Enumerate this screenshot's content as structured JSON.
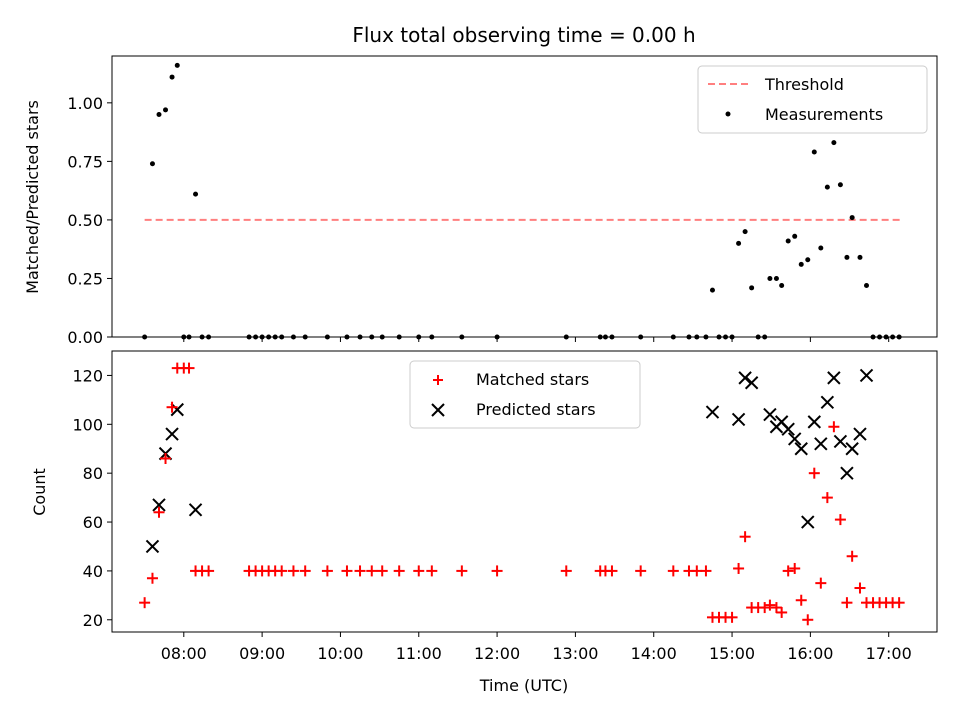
{
  "chart_data": [
    {
      "type": "scatter",
      "title": "Flux total observing time = 0.00 h",
      "xlabel": "",
      "ylabel": "Matched/Predicted stars",
      "ylim": [
        0,
        1.2
      ],
      "yticks": [
        "0.00",
        "0.25",
        "0.50",
        "0.75",
        "1.00"
      ],
      "legend_position": "top-right",
      "threshold": {
        "name": "Threshold",
        "value": 0.5,
        "x_start": "07:30",
        "x_end": "17:10",
        "color": "#ff7f7f"
      },
      "series": [
        {
          "name": "Measurements",
          "color": "#000000",
          "points": [
            [
              "07:30",
              0.0
            ],
            [
              "07:36",
              0.74
            ],
            [
              "07:41",
              0.95
            ],
            [
              "07:46",
              0.97
            ],
            [
              "07:51",
              1.11
            ],
            [
              "07:55",
              1.16
            ],
            [
              "08:00",
              0.0
            ],
            [
              "08:04",
              0.0
            ],
            [
              "08:09",
              0.61
            ],
            [
              "08:14",
              0.0
            ],
            [
              "08:19",
              0.0
            ],
            [
              "08:50",
              0.0
            ],
            [
              "08:55",
              0.0
            ],
            [
              "09:00",
              0.0
            ],
            [
              "09:05",
              0.0
            ],
            [
              "09:10",
              0.0
            ],
            [
              "09:15",
              0.0
            ],
            [
              "09:24",
              0.0
            ],
            [
              "09:33",
              0.0
            ],
            [
              "09:50",
              0.0
            ],
            [
              "10:05",
              0.0
            ],
            [
              "10:15",
              0.0
            ],
            [
              "10:24",
              0.0
            ],
            [
              "10:32",
              0.0
            ],
            [
              "10:45",
              0.0
            ],
            [
              "11:00",
              0.0
            ],
            [
              "11:10",
              0.0
            ],
            [
              "11:33",
              0.0
            ],
            [
              "12:00",
              0.0
            ],
            [
              "12:53",
              0.0
            ],
            [
              "13:19",
              0.0
            ],
            [
              "13:23",
              0.0
            ],
            [
              "13:28",
              0.0
            ],
            [
              "13:50",
              0.0
            ],
            [
              "14:15",
              0.0
            ],
            [
              "14:27",
              0.0
            ],
            [
              "14:33",
              0.0
            ],
            [
              "14:40",
              0.0
            ],
            [
              "14:45",
              0.2
            ],
            [
              "14:50",
              0.0
            ],
            [
              "14:55",
              0.0
            ],
            [
              "15:00",
              0.0
            ],
            [
              "15:05",
              0.4
            ],
            [
              "15:10",
              0.45
            ],
            [
              "15:15",
              0.21
            ],
            [
              "15:20",
              0.0
            ],
            [
              "15:25",
              0.0
            ],
            [
              "15:29",
              0.25
            ],
            [
              "15:34",
              0.25
            ],
            [
              "15:38",
              0.22
            ],
            [
              "15:43",
              0.41
            ],
            [
              "15:48",
              0.43
            ],
            [
              "15:53",
              0.31
            ],
            [
              "15:58",
              0.33
            ],
            [
              "16:03",
              0.79
            ],
            [
              "16:08",
              0.38
            ],
            [
              "16:13",
              0.64
            ],
            [
              "16:18",
              0.83
            ],
            [
              "16:23",
              0.65
            ],
            [
              "16:28",
              0.34
            ],
            [
              "16:32",
              0.51
            ],
            [
              "16:38",
              0.34
            ],
            [
              "16:43",
              0.22
            ],
            [
              "16:48",
              0.0
            ],
            [
              "16:53",
              0.0
            ],
            [
              "16:58",
              0.0
            ],
            [
              "17:03",
              0.0
            ],
            [
              "17:08",
              0.0
            ]
          ]
        }
      ]
    },
    {
      "type": "scatter",
      "title": "",
      "xlabel": "Time (UTC)",
      "ylabel": "Count",
      "ylim": [
        15,
        130
      ],
      "yticks": [
        "20",
        "40",
        "60",
        "80",
        "100",
        "120"
      ],
      "xticks": [
        "08:00",
        "09:00",
        "10:00",
        "11:00",
        "12:00",
        "13:00",
        "14:00",
        "15:00",
        "16:00",
        "17:00"
      ],
      "legend_position": "top-center",
      "series": [
        {
          "name": "Matched stars",
          "marker": "plus",
          "color": "#ff0000",
          "points": [
            [
              "07:30",
              27
            ],
            [
              "07:36",
              37
            ],
            [
              "07:41",
              64
            ],
            [
              "07:46",
              86
            ],
            [
              "07:51",
              107
            ],
            [
              "07:55",
              123
            ],
            [
              "08:00",
              123
            ],
            [
              "08:04",
              123
            ],
            [
              "08:09",
              40
            ],
            [
              "08:14",
              40
            ],
            [
              "08:19",
              40
            ],
            [
              "08:50",
              40
            ],
            [
              "08:55",
              40
            ],
            [
              "09:00",
              40
            ],
            [
              "09:05",
              40
            ],
            [
              "09:10",
              40
            ],
            [
              "09:15",
              40
            ],
            [
              "09:24",
              40
            ],
            [
              "09:33",
              40
            ],
            [
              "09:50",
              40
            ],
            [
              "10:05",
              40
            ],
            [
              "10:15",
              40
            ],
            [
              "10:24",
              40
            ],
            [
              "10:32",
              40
            ],
            [
              "10:45",
              40
            ],
            [
              "11:00",
              40
            ],
            [
              "11:10",
              40
            ],
            [
              "11:33",
              40
            ],
            [
              "12:00",
              40
            ],
            [
              "12:53",
              40
            ],
            [
              "13:19",
              40
            ],
            [
              "13:23",
              40
            ],
            [
              "13:28",
              40
            ],
            [
              "13:50",
              40
            ],
            [
              "14:15",
              40
            ],
            [
              "14:27",
              40
            ],
            [
              "14:33",
              40
            ],
            [
              "14:40",
              40
            ],
            [
              "14:45",
              21
            ],
            [
              "14:50",
              21
            ],
            [
              "14:55",
              21
            ],
            [
              "15:00",
              21
            ],
            [
              "15:05",
              41
            ],
            [
              "15:10",
              54
            ],
            [
              "15:15",
              25
            ],
            [
              "15:20",
              25
            ],
            [
              "15:25",
              25
            ],
            [
              "15:29",
              26
            ],
            [
              "15:34",
              25
            ],
            [
              "15:38",
              23
            ],
            [
              "15:43",
              40
            ],
            [
              "15:48",
              41
            ],
            [
              "15:53",
              28
            ],
            [
              "15:58",
              20
            ],
            [
              "16:03",
              80
            ],
            [
              "16:08",
              35
            ],
            [
              "16:13",
              70
            ],
            [
              "16:18",
              99
            ],
            [
              "16:23",
              61
            ],
            [
              "16:28",
              27
            ],
            [
              "16:32",
              46
            ],
            [
              "16:38",
              33
            ],
            [
              "16:43",
              27
            ],
            [
              "16:48",
              27
            ],
            [
              "16:53",
              27
            ],
            [
              "16:58",
              27
            ],
            [
              "17:03",
              27
            ],
            [
              "17:08",
              27
            ]
          ]
        },
        {
          "name": "Predicted stars",
          "marker": "x",
          "color": "#000000",
          "points": [
            [
              "07:36",
              50
            ],
            [
              "07:41",
              67
            ],
            [
              "07:46",
              88
            ],
            [
              "07:51",
              96
            ],
            [
              "07:55",
              106
            ],
            [
              "08:09",
              65
            ],
            [
              "14:45",
              105
            ],
            [
              "15:05",
              102
            ],
            [
              "15:10",
              119
            ],
            [
              "15:15",
              117
            ],
            [
              "15:29",
              104
            ],
            [
              "15:34",
              99
            ],
            [
              "15:38",
              101
            ],
            [
              "15:43",
              98
            ],
            [
              "15:48",
              94
            ],
            [
              "15:53",
              90
            ],
            [
              "15:58",
              60
            ],
            [
              "16:03",
              101
            ],
            [
              "16:08",
              92
            ],
            [
              "16:13",
              109
            ],
            [
              "16:18",
              119
            ],
            [
              "16:23",
              93
            ],
            [
              "16:28",
              80
            ],
            [
              "16:32",
              90
            ],
            [
              "16:38",
              96
            ],
            [
              "16:43",
              120
            ]
          ]
        }
      ]
    }
  ]
}
